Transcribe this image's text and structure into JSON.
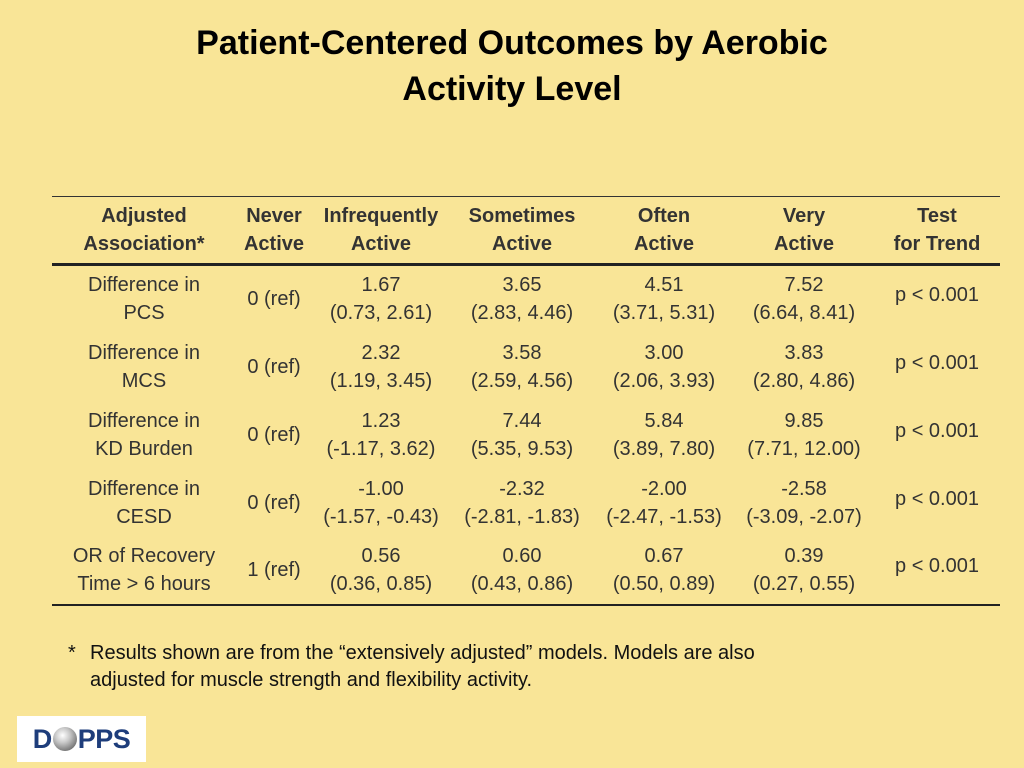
{
  "title": {
    "line1": "Patient-Centered Outcomes by Aerobic",
    "line2": "Activity Level"
  },
  "table": {
    "headers": [
      [
        "Adjusted",
        "Association*"
      ],
      [
        "Never",
        "Active"
      ],
      [
        "Infrequently",
        "Active"
      ],
      [
        "Sometimes",
        "Active"
      ],
      [
        "Often",
        "Active"
      ],
      [
        "Very",
        "Active"
      ],
      [
        "Test",
        "for Trend"
      ]
    ],
    "rows": [
      {
        "label": [
          "Difference in",
          "PCS"
        ],
        "ref": "0 (ref)",
        "cells": [
          [
            "1.67",
            "(0.73, 2.61)"
          ],
          [
            "3.65",
            "(2.83, 4.46)"
          ],
          [
            "4.51",
            "(3.71, 5.31)"
          ],
          [
            "7.52",
            "(6.64, 8.41)"
          ]
        ],
        "trend": "p < 0.001"
      },
      {
        "label": [
          "Difference in",
          "MCS"
        ],
        "ref": "0 (ref)",
        "cells": [
          [
            "2.32",
            "(1.19, 3.45)"
          ],
          [
            "3.58",
            "(2.59, 4.56)"
          ],
          [
            "3.00",
            "(2.06, 3.93)"
          ],
          [
            "3.83",
            "(2.80, 4.86)"
          ]
        ],
        "trend": "p < 0.001"
      },
      {
        "label": [
          "Difference in",
          "KD Burden"
        ],
        "ref": "0 (ref)",
        "cells": [
          [
            "1.23",
            "(-1.17, 3.62)"
          ],
          [
            "7.44",
            "(5.35, 9.53)"
          ],
          [
            "5.84",
            "(3.89, 7.80)"
          ],
          [
            "9.85",
            "(7.71, 12.00)"
          ]
        ],
        "trend": "p < 0.001"
      },
      {
        "label": [
          "Difference in",
          "CESD"
        ],
        "ref": "0 (ref)",
        "cells": [
          [
            "-1.00",
            "(-1.57, -0.43)"
          ],
          [
            "-2.32",
            "(-2.81, -1.83)"
          ],
          [
            "-2.00",
            "(-2.47, -1.53)"
          ],
          [
            "-2.58",
            "(-3.09, -2.07)"
          ]
        ],
        "trend": "p < 0.001"
      },
      {
        "label": [
          "OR of Recovery",
          "Time > 6 hours"
        ],
        "ref": "1 (ref)",
        "cells": [
          [
            "0.56",
            "(0.36, 0.85)"
          ],
          [
            "0.60",
            "(0.43, 0.86)"
          ],
          [
            "0.67",
            "(0.50, 0.89)"
          ],
          [
            "0.39",
            "(0.27, 0.55)"
          ]
        ],
        "trend": "p < 0.001"
      }
    ]
  },
  "footnote": {
    "marker": "*",
    "line1": "Results shown are from the “extensively adjusted” models. Models are also",
    "line2": "adjusted for muscle strength and flexibility activity."
  },
  "logo": {
    "left": "D",
    "right": "PPS"
  },
  "colors": {
    "background": "#f9e597",
    "logo_text": "#1e3d7b"
  }
}
